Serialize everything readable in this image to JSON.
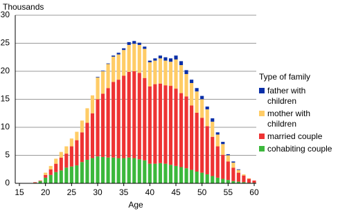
{
  "chart_data": {
    "type": "stacked-bar",
    "ylabel": "Thousands",
    "xlabel": "Age",
    "legend_title": "Type of family",
    "x": [
      18,
      19,
      20,
      21,
      22,
      23,
      24,
      25,
      26,
      27,
      28,
      29,
      30,
      31,
      32,
      33,
      34,
      35,
      36,
      37,
      38,
      39,
      40,
      41,
      42,
      43,
      44,
      45,
      46,
      47,
      48,
      49,
      50,
      51,
      52,
      53,
      54,
      55,
      56,
      57,
      58,
      59,
      60
    ],
    "series": [
      {
        "name": "cohabiting couple",
        "color": "#3cb83c",
        "values": [
          0.1,
          0.4,
          1.0,
          1.5,
          2.0,
          2.3,
          2.8,
          3.0,
          3.2,
          3.8,
          4.2,
          4.5,
          4.8,
          4.7,
          4.6,
          4.6,
          4.5,
          4.5,
          4.6,
          4.5,
          4.3,
          4.1,
          3.5,
          3.5,
          3.6,
          3.5,
          3.3,
          3.1,
          2.9,
          2.7,
          2.4,
          2.1,
          1.9,
          1.6,
          1.3,
          1.0,
          0.8,
          0.6,
          0.4,
          0.3,
          0.2,
          0.1,
          0.1
        ]
      },
      {
        "name": "married couple",
        "color": "#ee3333",
        "values": [
          0.1,
          0.1,
          0.5,
          1.0,
          1.5,
          2.3,
          2.5,
          3.6,
          4.5,
          5.3,
          6.6,
          8.0,
          10.2,
          11.3,
          12.4,
          13.5,
          14.0,
          14.7,
          15.3,
          15.5,
          15.4,
          14.7,
          13.8,
          14.2,
          14.2,
          14.0,
          14.1,
          13.8,
          13.2,
          12.8,
          11.5,
          10.5,
          9.8,
          8.6,
          7.0,
          5.6,
          4.3,
          3.3,
          2.4,
          1.6,
          1.2,
          0.7,
          0.4
        ]
      },
      {
        "name": "mother with children",
        "color": "#ffcc66",
        "values": [
          0,
          0,
          0.4,
          0.6,
          0.9,
          1.0,
          1.3,
          1.4,
          1.5,
          2.1,
          2.6,
          3.2,
          3.9,
          4.0,
          4.3,
          4.5,
          4.5,
          4.6,
          4.8,
          4.9,
          5.0,
          5.2,
          4.3,
          4.2,
          4.5,
          4.4,
          4.3,
          5.2,
          5.0,
          4.0,
          4.0,
          3.8,
          3.3,
          3.0,
          2.7,
          2.1,
          1.9,
          1.1,
          0.9,
          0.5,
          0.2,
          0.1,
          0
        ]
      },
      {
        "name": "father with children",
        "color": "#0a2fa8",
        "values": [
          0,
          0,
          0,
          0,
          0,
          0,
          0,
          0,
          0,
          0,
          0,
          0,
          0.1,
          0.1,
          0.1,
          0.2,
          0.3,
          0.3,
          0.5,
          0.5,
          0.4,
          0.4,
          0.3,
          0.4,
          0.5,
          0.6,
          0.6,
          0.7,
          0.7,
          0.7,
          0.6,
          0.6,
          0.6,
          0.5,
          0.6,
          0.4,
          0.4,
          0.2,
          0.2,
          0.1,
          0,
          0,
          0
        ]
      }
    ],
    "xlim": [
      14.2,
      60.4
    ],
    "xticks": [
      15,
      20,
      25,
      30,
      35,
      40,
      45,
      50,
      55,
      60
    ],
    "ylim": [
      0,
      30
    ],
    "yticks": [
      0,
      5,
      10,
      15,
      20,
      25,
      30
    ],
    "grid": true
  }
}
